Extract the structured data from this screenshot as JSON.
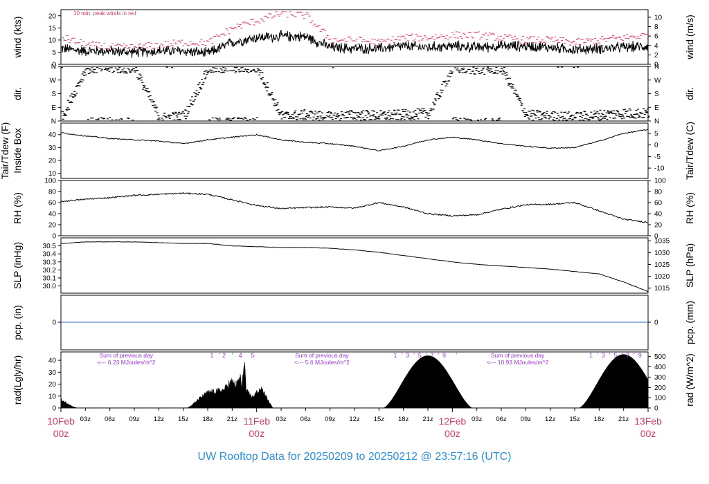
{
  "footer": {
    "title": "UW Rooftop Data for 20250209  to  20250212 @ 23:57:16  (UTC)"
  },
  "colors": {
    "peak": "#d03a6a",
    "sum_note": "#9933dd",
    "pcp_line": "#3366cc",
    "date_label": "#d03a6a",
    "footer": "#2b8fd6",
    "trace": "#000000"
  },
  "chart_data": [
    {
      "type": "line",
      "panel": "wind",
      "note": "10 min. peak winds in red",
      "left_ylabel": "wind (kts)",
      "right_ylabel": "wind (m/s)",
      "ylim_left": [
        0,
        22.5
      ],
      "ylim_right": [
        0,
        11.6
      ],
      "left_ticks": [
        "0",
        "5",
        "10",
        "15",
        "20"
      ],
      "right_ticks": [
        "0",
        "2",
        "4",
        "6",
        "8",
        "10"
      ],
      "x_hours": [
        0,
        3,
        6,
        9,
        12,
        15,
        18,
        21,
        24,
        27,
        30,
        33,
        36,
        39,
        42,
        45,
        48,
        51,
        54,
        57,
        60,
        63,
        66,
        69,
        72
      ],
      "series": [
        {
          "role": "mean",
          "values": [
            6.5,
            5.5,
            5.5,
            5,
            5.5,
            5.5,
            4.5,
            9,
            11,
            11.5,
            11.5,
            7,
            6.5,
            6.5,
            7.5,
            7,
            7.5,
            7,
            7.5,
            7.5,
            7,
            6,
            6.5,
            7,
            7.5
          ]
        },
        {
          "role": "peak",
          "values": [
            11,
            8,
            7,
            7,
            8,
            9,
            9,
            15,
            18,
            21,
            20,
            10,
            10,
            9,
            11,
            11,
            12,
            12,
            11,
            10,
            10,
            9,
            10,
            11,
            12
          ]
        }
      ]
    },
    {
      "type": "scatter",
      "panel": "dir",
      "left_ylabel": "dir.",
      "right_ylabel": "dir.",
      "ylim": [
        0,
        360
      ],
      "ticks": [
        "N",
        "W",
        "S",
        "E",
        "N"
      ],
      "x_hours": [
        0,
        3,
        6,
        9,
        12,
        15,
        18,
        21,
        24,
        27,
        30,
        33,
        36,
        39,
        42,
        45,
        48,
        51,
        54,
        57,
        60,
        63,
        66,
        69,
        72
      ],
      "values": [
        20,
        345,
        350,
        345,
        20,
        30,
        345,
        350,
        350,
        30,
        40,
        25,
        40,
        35,
        40,
        50,
        350,
        340,
        345,
        40,
        30,
        25,
        40,
        50,
        50
      ]
    },
    {
      "type": "line",
      "panel": "temp",
      "left_ylabel": "Tair/Tdew (F)",
      "left_ylabel2": "Inside Box",
      "right_ylabel": "Tair/Tdew (C)",
      "ylim": [
        6,
        49
      ],
      "left_ticks": [
        "10",
        "20",
        "30",
        "40"
      ],
      "right_ticks": [
        "-10",
        "-5",
        "0",
        "5"
      ],
      "x_hours": [
        0,
        3,
        6,
        9,
        12,
        15,
        18,
        21,
        24,
        27,
        30,
        33,
        36,
        39,
        42,
        45,
        48,
        51,
        54,
        57,
        60,
        63,
        66,
        69,
        72
      ],
      "values": [
        41.5,
        39,
        37,
        36,
        35,
        33,
        36,
        38,
        40,
        36,
        34,
        33,
        31,
        27.5,
        31,
        36,
        38,
        36,
        33,
        31,
        29.5,
        30,
        35,
        41,
        44
      ]
    },
    {
      "type": "line",
      "panel": "rh",
      "left_ylabel": "RH (%)",
      "right_ylabel": "RH (%)",
      "ylim": [
        0,
        100
      ],
      "ticks": [
        "0",
        "20",
        "40",
        "60",
        "80",
        "100"
      ],
      "x_hours": [
        0,
        3,
        6,
        9,
        12,
        15,
        18,
        21,
        24,
        27,
        30,
        33,
        36,
        39,
        42,
        45,
        48,
        51,
        54,
        57,
        60,
        63,
        66,
        69,
        72
      ],
      "values": [
        62,
        66,
        69,
        73,
        75,
        77,
        75,
        65,
        55,
        49,
        51,
        52,
        50,
        60,
        52,
        40,
        36,
        38,
        48,
        56,
        57,
        60,
        45,
        30,
        24
      ]
    },
    {
      "type": "line",
      "panel": "slp",
      "left_ylabel": "SLP (inHg)",
      "right_ylabel": "SLP (hPa)",
      "ylim": [
        29.91,
        30.6
      ],
      "left_ticks": [
        "30.0",
        "30.1",
        "30.2",
        "30.3",
        "30.4",
        "30.5"
      ],
      "right_ticks": [
        "1015",
        "1020",
        "1025",
        "1030",
        "1035"
      ],
      "x_hours": [
        0,
        3,
        6,
        9,
        12,
        15,
        18,
        21,
        24,
        27,
        30,
        33,
        36,
        39,
        42,
        45,
        48,
        51,
        54,
        57,
        60,
        63,
        66,
        69,
        72
      ],
      "values": [
        30.53,
        30.55,
        30.55,
        30.55,
        30.54,
        30.53,
        30.53,
        30.5,
        30.49,
        30.48,
        30.48,
        30.47,
        30.45,
        30.42,
        30.38,
        30.34,
        30.3,
        30.27,
        30.25,
        30.23,
        30.21,
        30.18,
        30.15,
        30.05,
        29.93
      ]
    },
    {
      "type": "line",
      "panel": "pcp",
      "left_ylabel": "pcp. (in)",
      "right_ylabel": "pcp. (mm)",
      "left_ticks": [
        "0"
      ],
      "right_ticks": [
        "0"
      ],
      "x_hours": [
        0,
        72
      ],
      "values": [
        0,
        0
      ]
    },
    {
      "type": "area",
      "panel": "rad",
      "left_ylabel": "rad(Lgly/hr)",
      "right_ylabel": "rad (W/m^2)",
      "ylim_left": [
        0,
        47
      ],
      "ylim_right": [
        0,
        545
      ],
      "left_ticks": [
        "0",
        "10",
        "20",
        "30",
        "40"
      ],
      "right_ticks": [
        "0",
        "100",
        "200",
        "300",
        "400",
        "500"
      ],
      "x_hours": [
        0,
        0.5,
        1,
        1.5,
        2,
        15.5,
        16,
        17,
        18,
        19,
        20,
        20.5,
        21,
        21.5,
        22,
        22.2,
        22.5,
        22.7,
        23,
        23.5,
        24,
        24.5,
        25,
        25.5,
        26,
        39,
        72
      ],
      "values": [
        7,
        5,
        3,
        1,
        0,
        0,
        2,
        8,
        13,
        14,
        15,
        20,
        22,
        19,
        26,
        16,
        42,
        15,
        12,
        9,
        13,
        16,
        12,
        5,
        0,
        0,
        0
      ],
      "diurnal_curves": [
        {
          "start_hour": 39.5,
          "end_hour": 50.5,
          "peak": 44
        },
        {
          "start_hour": 63.5,
          "end_hour": 74.5,
          "peak": 45
        }
      ],
      "annotations": [
        {
          "text": "Sum of previous day",
          "x_hour": 8,
          "row": 1
        },
        {
          "text": "<--- 6.23 MJoules/m^2",
          "x_hour": 8,
          "row": 2
        },
        {
          "text": "Sum of previous day",
          "x_hour": 32,
          "row": 1
        },
        {
          "text": "<--- 5.6 MJoules/m^2",
          "x_hour": 32,
          "row": 2
        },
        {
          "text": "Sum of previous day",
          "x_hour": 56,
          "row": 1
        },
        {
          "text": "<--- 10.93 MJoules/m^2",
          "x_hour": 56,
          "row": 2
        }
      ],
      "hour_marks": [
        {
          "hour": 18.5,
          "text": "1"
        },
        {
          "hour": 19.5,
          "text": "'"
        },
        {
          "hour": 20,
          "text": "2"
        },
        {
          "hour": 21,
          "text": "'"
        },
        {
          "hour": 22,
          "text": "4"
        },
        {
          "hour": 23.5,
          "text": "5"
        },
        {
          "hour": 41,
          "text": "1"
        },
        {
          "hour": 41.8,
          "text": "'"
        },
        {
          "hour": 42.5,
          "text": "3"
        },
        {
          "hour": 43.3,
          "text": "'"
        },
        {
          "hour": 44,
          "text": "5"
        },
        {
          "hour": 44.8,
          "text": "'"
        },
        {
          "hour": 45.5,
          "text": "7"
        },
        {
          "hour": 46.3,
          "text": "'"
        },
        {
          "hour": 47,
          "text": "9"
        },
        {
          "hour": 48.5,
          "text": "'"
        },
        {
          "hour": 65,
          "text": "1"
        },
        {
          "hour": 65.8,
          "text": "'"
        },
        {
          "hour": 66.5,
          "text": "3"
        },
        {
          "hour": 67.3,
          "text": "'"
        },
        {
          "hour": 68,
          "text": "5"
        },
        {
          "hour": 68.8,
          "text": "'"
        },
        {
          "hour": 69.5,
          "text": "7"
        },
        {
          "hour": 70.3,
          "text": "'"
        },
        {
          "hour": 71,
          "text": "9"
        },
        {
          "hour": 72,
          "text": "'"
        }
      ]
    }
  ],
  "time_axis": {
    "xlim_hours": [
      0,
      72
    ],
    "ticks": [
      {
        "hour": 3,
        "label": "03z"
      },
      {
        "hour": 6,
        "label": "06z"
      },
      {
        "hour": 9,
        "label": "09z"
      },
      {
        "hour": 12,
        "label": "12z"
      },
      {
        "hour": 15,
        "label": "15z"
      },
      {
        "hour": 18,
        "label": "18z"
      },
      {
        "hour": 21,
        "label": "21z"
      },
      {
        "hour": 27,
        "label": "03z"
      },
      {
        "hour": 30,
        "label": "06z"
      },
      {
        "hour": 33,
        "label": "09z"
      },
      {
        "hour": 36,
        "label": "12z"
      },
      {
        "hour": 39,
        "label": "15z"
      },
      {
        "hour": 42,
        "label": "18z"
      },
      {
        "hour": 45,
        "label": "21z"
      },
      {
        "hour": 51,
        "label": "03z"
      },
      {
        "hour": 54,
        "label": "06z"
      },
      {
        "hour": 57,
        "label": "09z"
      },
      {
        "hour": 60,
        "label": "12z"
      },
      {
        "hour": 63,
        "label": "15z"
      },
      {
        "hour": 66,
        "label": "18z"
      },
      {
        "hour": 69,
        "label": "21z"
      }
    ],
    "days": [
      {
        "hour": 0,
        "date": "10Feb",
        "time": "00z"
      },
      {
        "hour": 24,
        "date": "11Feb",
        "time": "00z"
      },
      {
        "hour": 48,
        "date": "12Feb",
        "time": "00z"
      },
      {
        "hour": 72,
        "date": "13Feb",
        "time": "00z"
      }
    ]
  }
}
